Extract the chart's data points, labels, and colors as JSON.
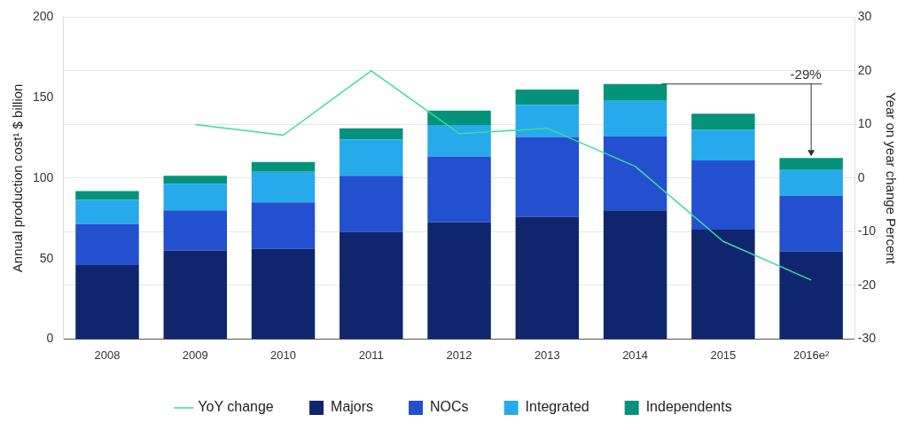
{
  "chart_data": {
    "type": "bar",
    "stacked": true,
    "categories": [
      "2008",
      "2009",
      "2010",
      "2011",
      "2012",
      "2013",
      "2014",
      "2015",
      "2016e²"
    ],
    "ylabel": "Annual production cost¹ $ billion",
    "y2label": "Year on year change Percent",
    "ylim": [
      0,
      200
    ],
    "yticks": [
      0,
      50,
      100,
      150,
      200
    ],
    "y2lim": [
      -30,
      30
    ],
    "y2ticks": [
      -30,
      -20,
      -10,
      0,
      10,
      20,
      30
    ],
    "grid": "y",
    "legend": "bottom",
    "marker": "none",
    "annotations": [
      {
        "text": "-29%",
        "x": "2016e²",
        "y": 112.5
      }
    ],
    "series": [
      {
        "name": "YoY change",
        "type": "line",
        "axis": "y2",
        "color": "#3ddc97",
        "values": [
          null,
          10,
          8,
          20,
          8.3,
          9.3,
          2.2,
          -11.8,
          -19
        ]
      },
      {
        "name": "Majors",
        "color": "#0f256e",
        "values": [
          46,
          55,
          56,
          66.5,
          72.5,
          76,
          80,
          68,
          54.5
        ]
      },
      {
        "name": "NOCs",
        "color": "#2250cf",
        "values": [
          25.5,
          25,
          29,
          35,
          41,
          49.5,
          46,
          43,
          34.5
        ]
      },
      {
        "name": "Integrated",
        "color": "#26aaec",
        "values": [
          15,
          16.5,
          19,
          22.5,
          19.5,
          20,
          22,
          19,
          16
        ]
      },
      {
        "name": "Independents",
        "color": "#04937a",
        "values": [
          5.5,
          5,
          6,
          7,
          9,
          9.5,
          10.5,
          10,
          7.5
        ]
      }
    ]
  }
}
